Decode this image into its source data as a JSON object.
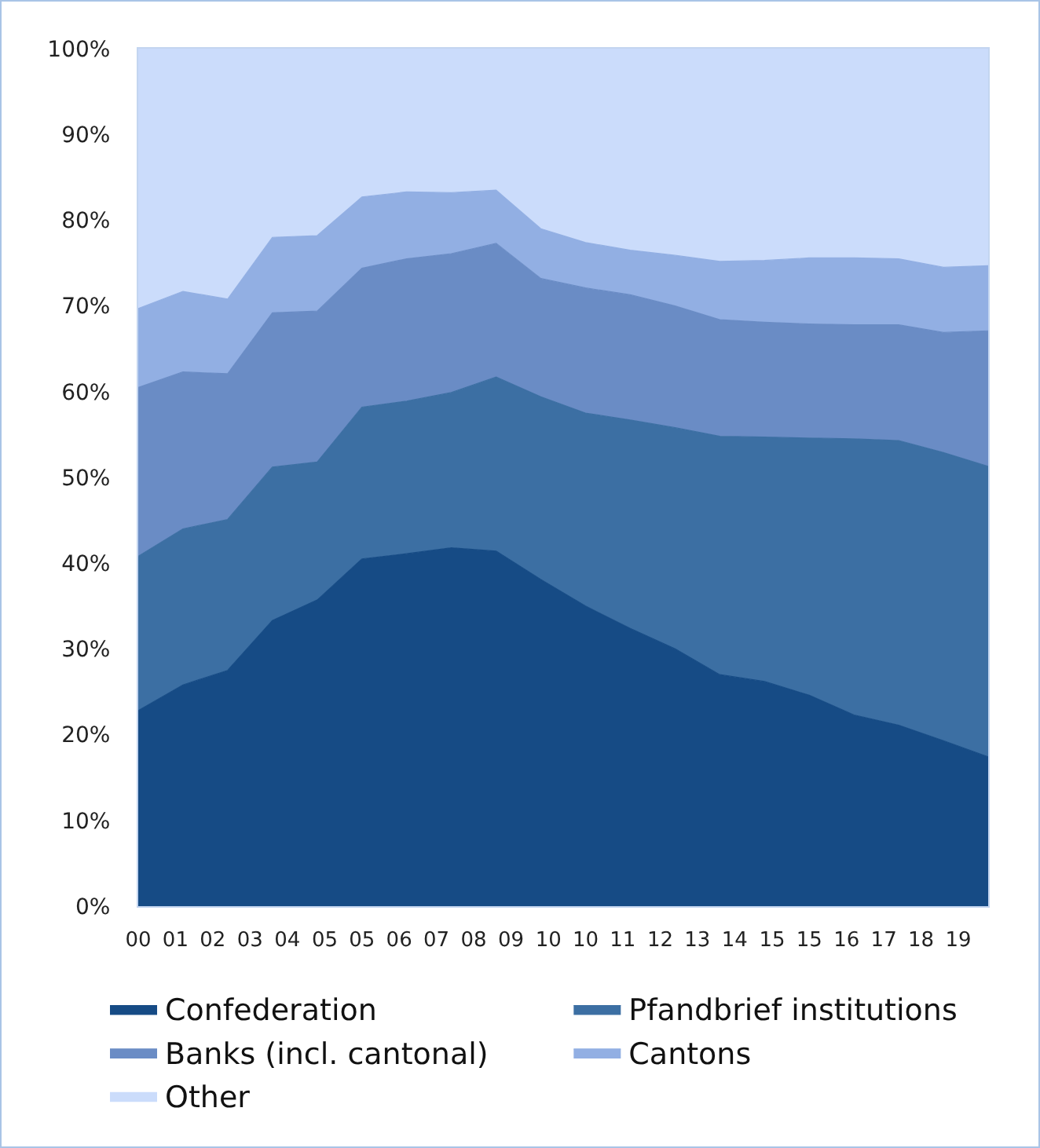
{
  "chart_data": {
    "type": "area",
    "stacked": true,
    "x": [
      "2000-12",
      "2001-12",
      "2002-12",
      "2003-12",
      "2004-12",
      "2005-12",
      "2006-12",
      "2007-12",
      "2008-12",
      "2009-12",
      "2010-12",
      "2011-12",
      "2012-12",
      "2013-12",
      "2014-12",
      "2015-12",
      "2016-12",
      "2017-12",
      "2018-12",
      "2019-12"
    ],
    "xlim": [
      "2000-12",
      "2019-12"
    ],
    "xticks": [
      {
        "value": "2000-12",
        "label": "00"
      },
      {
        "value": "2001-10",
        "label": "01"
      },
      {
        "value": "2002-08",
        "label": "02"
      },
      {
        "value": "2003-06",
        "label": "03"
      },
      {
        "value": "2004-04",
        "label": "04"
      },
      {
        "value": "2005-02",
        "label": "05"
      },
      {
        "value": "2005-12",
        "label": "05"
      },
      {
        "value": "2006-10",
        "label": "06"
      },
      {
        "value": "2007-08",
        "label": "07"
      },
      {
        "value": "2008-06",
        "label": "08"
      },
      {
        "value": "2009-04",
        "label": "09"
      },
      {
        "value": "2010-02",
        "label": "10"
      },
      {
        "value": "2010-12",
        "label": "10"
      },
      {
        "value": "2011-10",
        "label": "11"
      },
      {
        "value": "2012-08",
        "label": "12"
      },
      {
        "value": "2013-06",
        "label": "13"
      },
      {
        "value": "2014-04",
        "label": "14"
      },
      {
        "value": "2015-02",
        "label": "15"
      },
      {
        "value": "2015-12",
        "label": "15"
      },
      {
        "value": "2016-10",
        "label": "16"
      },
      {
        "value": "2017-08",
        "label": "17"
      },
      {
        "value": "2018-06",
        "label": "18"
      },
      {
        "value": "2019-04",
        "label": "19"
      }
    ],
    "ylim": [
      0,
      100
    ],
    "yticks": [
      {
        "value": 0,
        "label": "0%"
      },
      {
        "value": 10,
        "label": "10%"
      },
      {
        "value": 20,
        "label": "20%"
      },
      {
        "value": 30,
        "label": "30%"
      },
      {
        "value": 40,
        "label": "40%"
      },
      {
        "value": 50,
        "label": "50%"
      },
      {
        "value": 60,
        "label": "60%"
      },
      {
        "value": 70,
        "label": "70%"
      },
      {
        "value": 80,
        "label": "80%"
      },
      {
        "value": 90,
        "label": "90%"
      },
      {
        "value": 100,
        "label": "100%"
      }
    ],
    "legend": "bottom",
    "series": [
      {
        "name": "Confederation",
        "color": "#164b85",
        "values": [
          22.8,
          25.8,
          27.5,
          33.3,
          35.7,
          40.5,
          41.1,
          41.8,
          41.4,
          38.1,
          35.0,
          32.4,
          30.0,
          27.0,
          26.2,
          24.6,
          22.3,
          21.1,
          19.3,
          17.4
        ]
      },
      {
        "name": "Pfandbrief institutions",
        "color": "#3c6fa3",
        "values": [
          18.0,
          18.2,
          17.6,
          17.9,
          16.1,
          17.7,
          17.8,
          18.1,
          20.3,
          21.3,
          22.5,
          24.3,
          25.8,
          27.8,
          28.5,
          30.0,
          32.2,
          33.2,
          33.6,
          33.9
        ]
      },
      {
        "name": "Banks (incl. cantonal)",
        "color": "#6a8cc5",
        "values": [
          19.7,
          18.3,
          17.0,
          18.0,
          17.6,
          16.2,
          16.6,
          16.2,
          15.6,
          13.8,
          14.6,
          14.6,
          14.2,
          13.6,
          13.4,
          13.3,
          13.3,
          13.5,
          14.0,
          15.8
        ]
      },
      {
        "name": "Cantons",
        "color": "#92afe3",
        "values": [
          9.2,
          9.4,
          8.7,
          8.8,
          8.8,
          8.3,
          7.8,
          7.1,
          6.2,
          5.8,
          5.3,
          5.2,
          5.9,
          6.8,
          7.2,
          7.7,
          7.8,
          7.7,
          7.6,
          7.6
        ]
      },
      {
        "name": "Other",
        "color": "#cbdcfb",
        "values": [
          30.3,
          28.3,
          29.2,
          22.0,
          21.8,
          17.3,
          16.7,
          16.8,
          16.5,
          21.0,
          22.6,
          23.5,
          24.1,
          24.8,
          24.7,
          24.4,
          24.4,
          24.5,
          25.5,
          25.3
        ]
      }
    ]
  }
}
